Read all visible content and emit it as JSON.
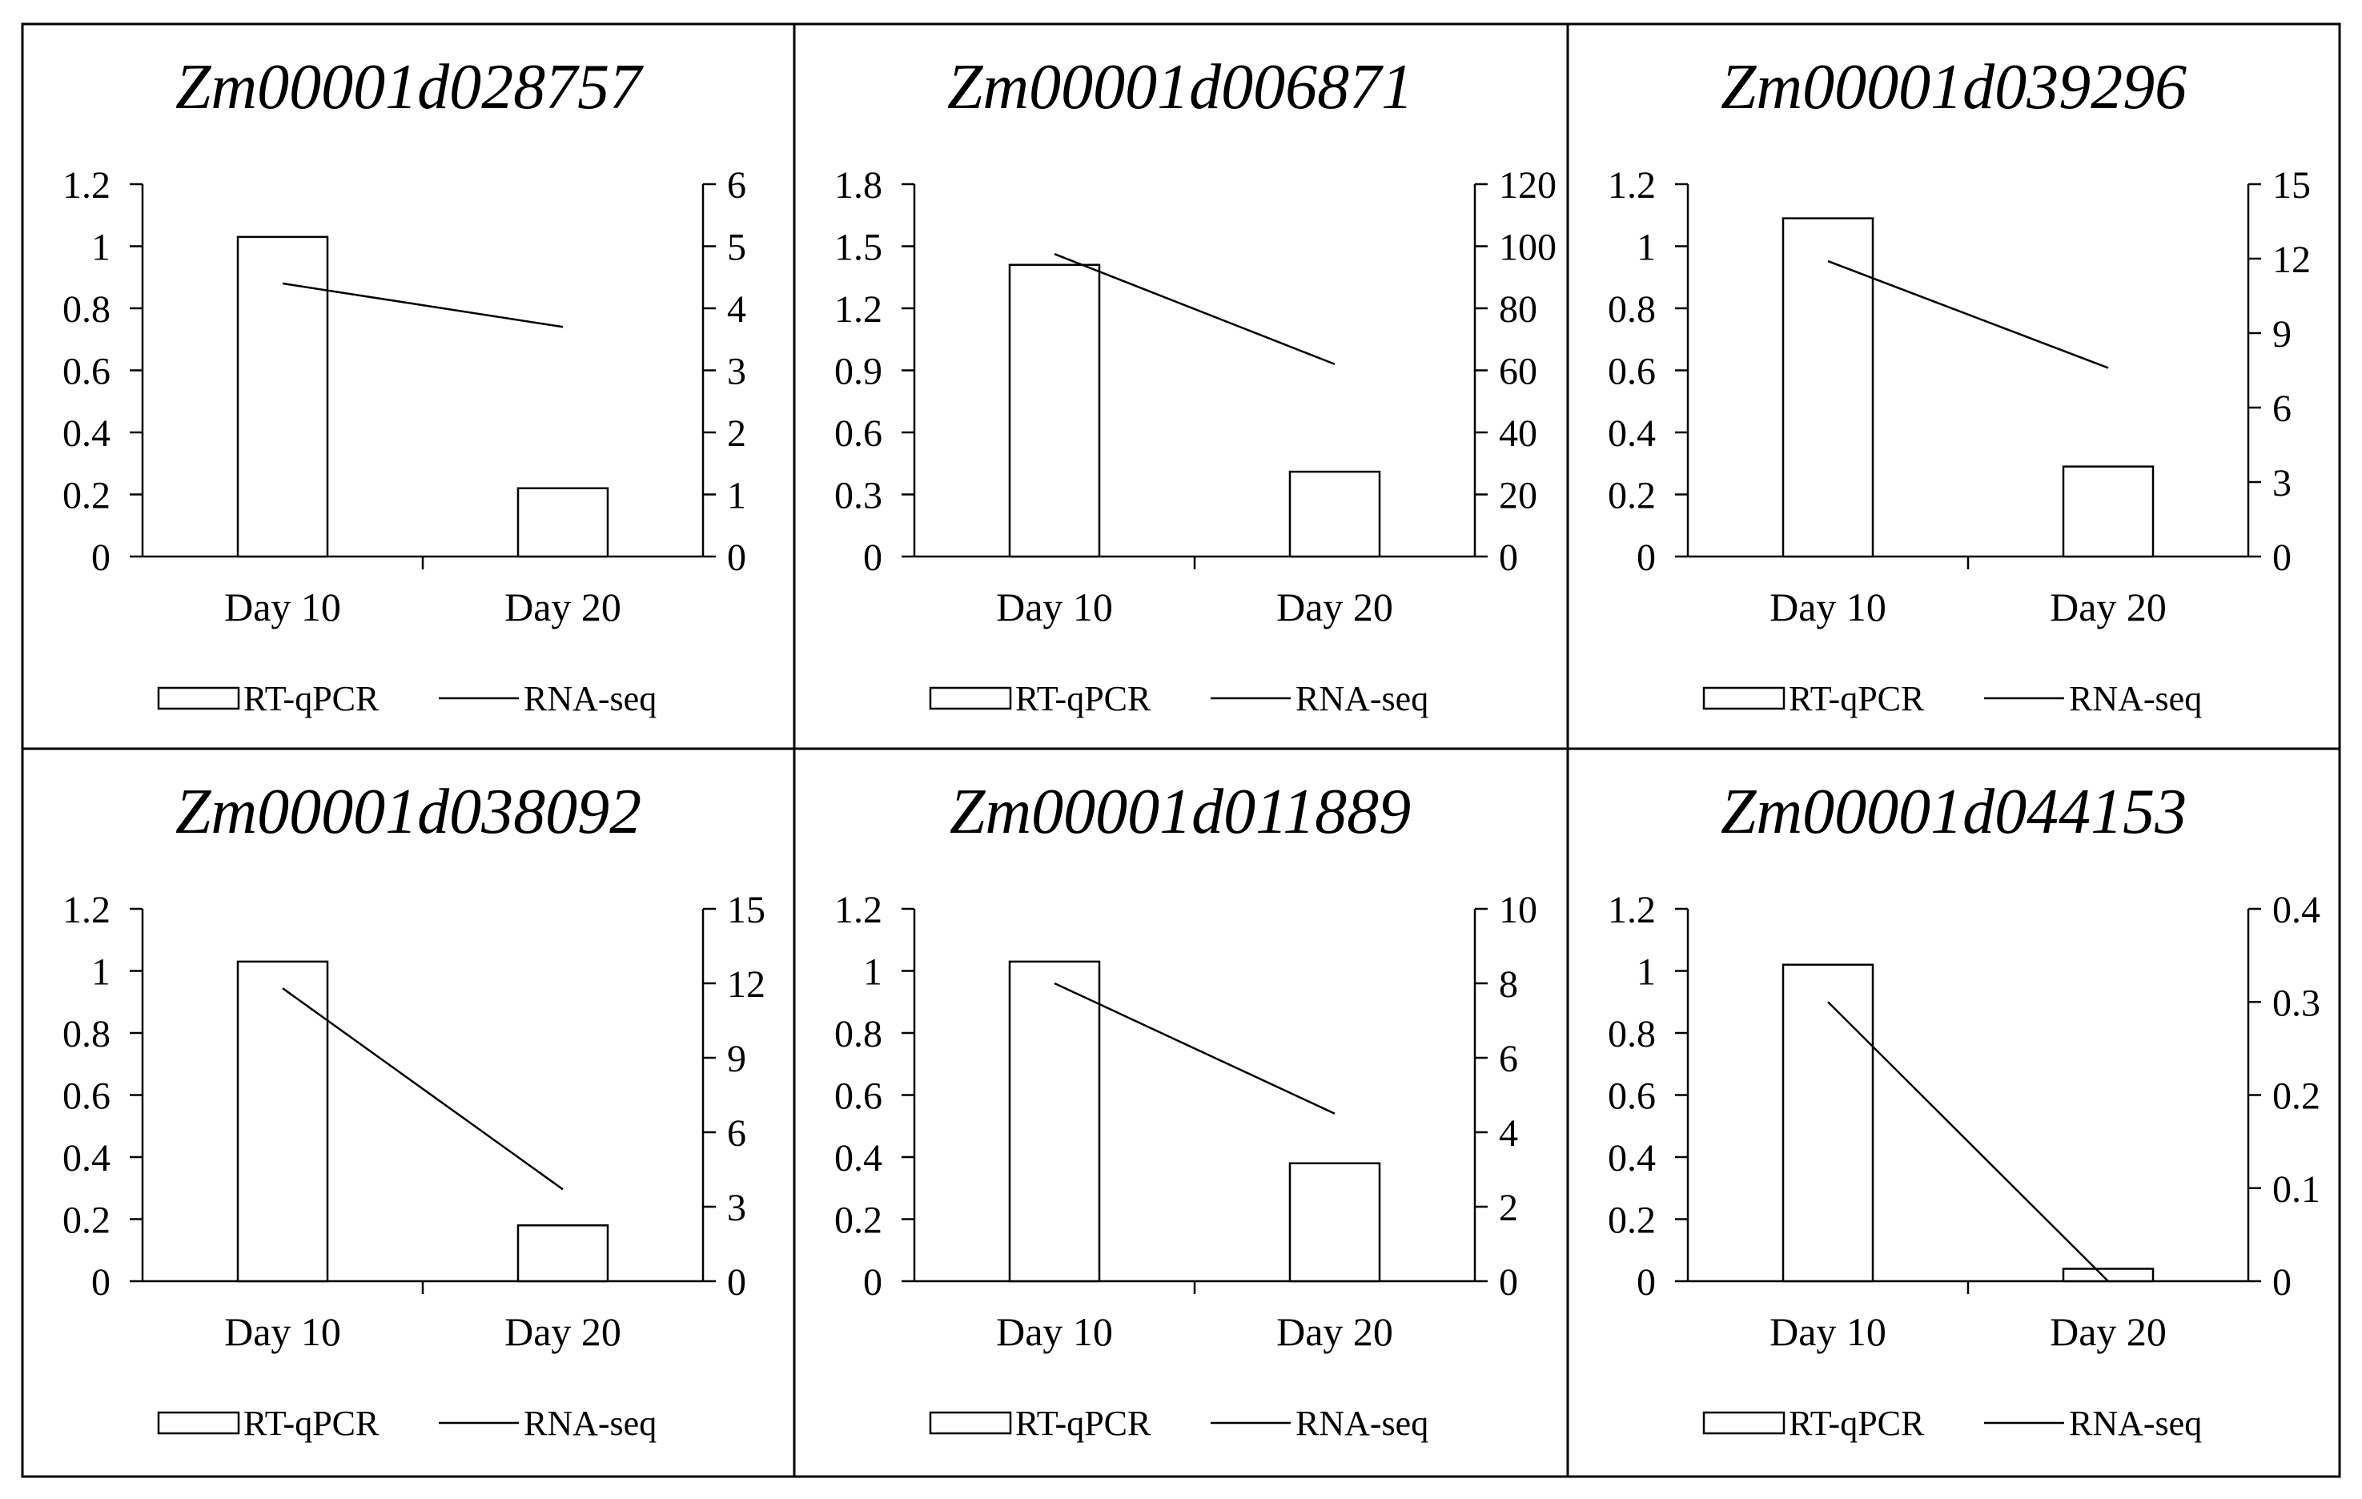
{
  "chart_data": [
    {
      "type": "bar+line",
      "title": "Zm00001d028757",
      "categories": [
        "Day 10",
        "Day 20"
      ],
      "series": [
        {
          "name": "RT-qPCR",
          "kind": "bar",
          "axis": "left",
          "values": [
            1.03,
            0.22
          ]
        },
        {
          "name": "RNA-seq",
          "kind": "line",
          "axis": "right",
          "values": [
            4.4,
            3.7
          ]
        }
      ],
      "y_left": {
        "min": 0,
        "max": 1.2,
        "ticks": [
          "0",
          "0.2",
          "0.4",
          "0.6",
          "0.8",
          "1",
          "1.2"
        ]
      },
      "y_right": {
        "min": 0,
        "max": 6,
        "ticks": [
          "0",
          "1",
          "2",
          "3",
          "4",
          "5",
          "6"
        ]
      },
      "legend": [
        "RT-qPCR",
        "RNA-seq"
      ]
    },
    {
      "type": "bar+line",
      "title": "Zm00001d006871",
      "categories": [
        "Day 10",
        "Day 20"
      ],
      "series": [
        {
          "name": "RT-qPCR",
          "kind": "bar",
          "axis": "left",
          "values": [
            1.41,
            0.41
          ]
        },
        {
          "name": "RNA-seq",
          "kind": "line",
          "axis": "right",
          "values": [
            97.5,
            62
          ]
        }
      ],
      "y_left": {
        "min": 0,
        "max": 1.8,
        "ticks": [
          "0",
          "0.3",
          "0.6",
          "0.9",
          "1.2",
          "1.5",
          "1.8"
        ]
      },
      "y_right": {
        "min": 0,
        "max": 120,
        "ticks": [
          "0",
          "20",
          "40",
          "60",
          "80",
          "100",
          "120"
        ]
      },
      "legend": [
        "RT-qPCR",
        "RNA-seq"
      ]
    },
    {
      "type": "bar+line",
      "title": "Zm00001d039296",
      "categories": [
        "Day 10",
        "Day 20"
      ],
      "series": [
        {
          "name": "RT-qPCR",
          "kind": "bar",
          "axis": "left",
          "values": [
            1.09,
            0.29
          ]
        },
        {
          "name": "RNA-seq",
          "kind": "line",
          "axis": "right",
          "values": [
            11.9,
            7.6
          ]
        }
      ],
      "y_left": {
        "min": 0,
        "max": 1.2,
        "ticks": [
          "0",
          "0.2",
          "0.4",
          "0.6",
          "0.8",
          "1",
          "1.2"
        ]
      },
      "y_right": {
        "min": 0,
        "max": 15,
        "ticks": [
          "0",
          "3",
          "6",
          "9",
          "12",
          "15"
        ]
      },
      "legend": [
        "RT-qPCR",
        "RNA-seq"
      ]
    },
    {
      "type": "bar+line",
      "title": "Zm00001d038092",
      "categories": [
        "Day 10",
        "Day 20"
      ],
      "series": [
        {
          "name": "RT-qPCR",
          "kind": "bar",
          "axis": "left",
          "values": [
            1.03,
            0.18
          ]
        },
        {
          "name": "RNA-seq",
          "kind": "line",
          "axis": "right",
          "values": [
            11.8,
            3.7
          ]
        }
      ],
      "y_left": {
        "min": 0,
        "max": 1.2,
        "ticks": [
          "0",
          "0.2",
          "0.4",
          "0.6",
          "0.8",
          "1",
          "1.2"
        ]
      },
      "y_right": {
        "min": 0,
        "max": 15,
        "ticks": [
          "0",
          "3",
          "6",
          "9",
          "12",
          "15"
        ]
      },
      "legend": [
        "RT-qPCR",
        "RNA-seq"
      ]
    },
    {
      "type": "bar+line",
      "title": "Zm00001d011889",
      "categories": [
        "Day 10",
        "Day 20"
      ],
      "series": [
        {
          "name": "RT-qPCR",
          "kind": "bar",
          "axis": "left",
          "values": [
            1.03,
            0.38
          ]
        },
        {
          "name": "RNA-seq",
          "kind": "line",
          "axis": "right",
          "values": [
            8.0,
            4.5
          ]
        }
      ],
      "y_left": {
        "min": 0,
        "max": 1.2,
        "ticks": [
          "0",
          "0.2",
          "0.4",
          "0.6",
          "0.8",
          "1",
          "1.2"
        ]
      },
      "y_right": {
        "min": 0,
        "max": 10,
        "ticks": [
          "0",
          "2",
          "4",
          "6",
          "8",
          "10"
        ]
      },
      "legend": [
        "RT-qPCR",
        "RNA-seq"
      ]
    },
    {
      "type": "bar+line",
      "title": "Zm00001d044153",
      "categories": [
        "Day 10",
        "Day 20"
      ],
      "series": [
        {
          "name": "RT-qPCR",
          "kind": "bar",
          "axis": "left",
          "values": [
            1.02,
            0.04
          ]
        },
        {
          "name": "RNA-seq",
          "kind": "line",
          "axis": "right",
          "values": [
            0.3,
            0.0
          ]
        }
      ],
      "y_left": {
        "min": 0,
        "max": 1.2,
        "ticks": [
          "0",
          "0.2",
          "0.4",
          "0.6",
          "0.8",
          "1",
          "1.2"
        ]
      },
      "y_right": {
        "min": 0,
        "max": 0.4,
        "ticks": [
          "0",
          "0.1",
          "0.2",
          "0.3",
          "0.4"
        ]
      },
      "legend": [
        "RT-qPCR",
        "RNA-seq"
      ]
    }
  ]
}
